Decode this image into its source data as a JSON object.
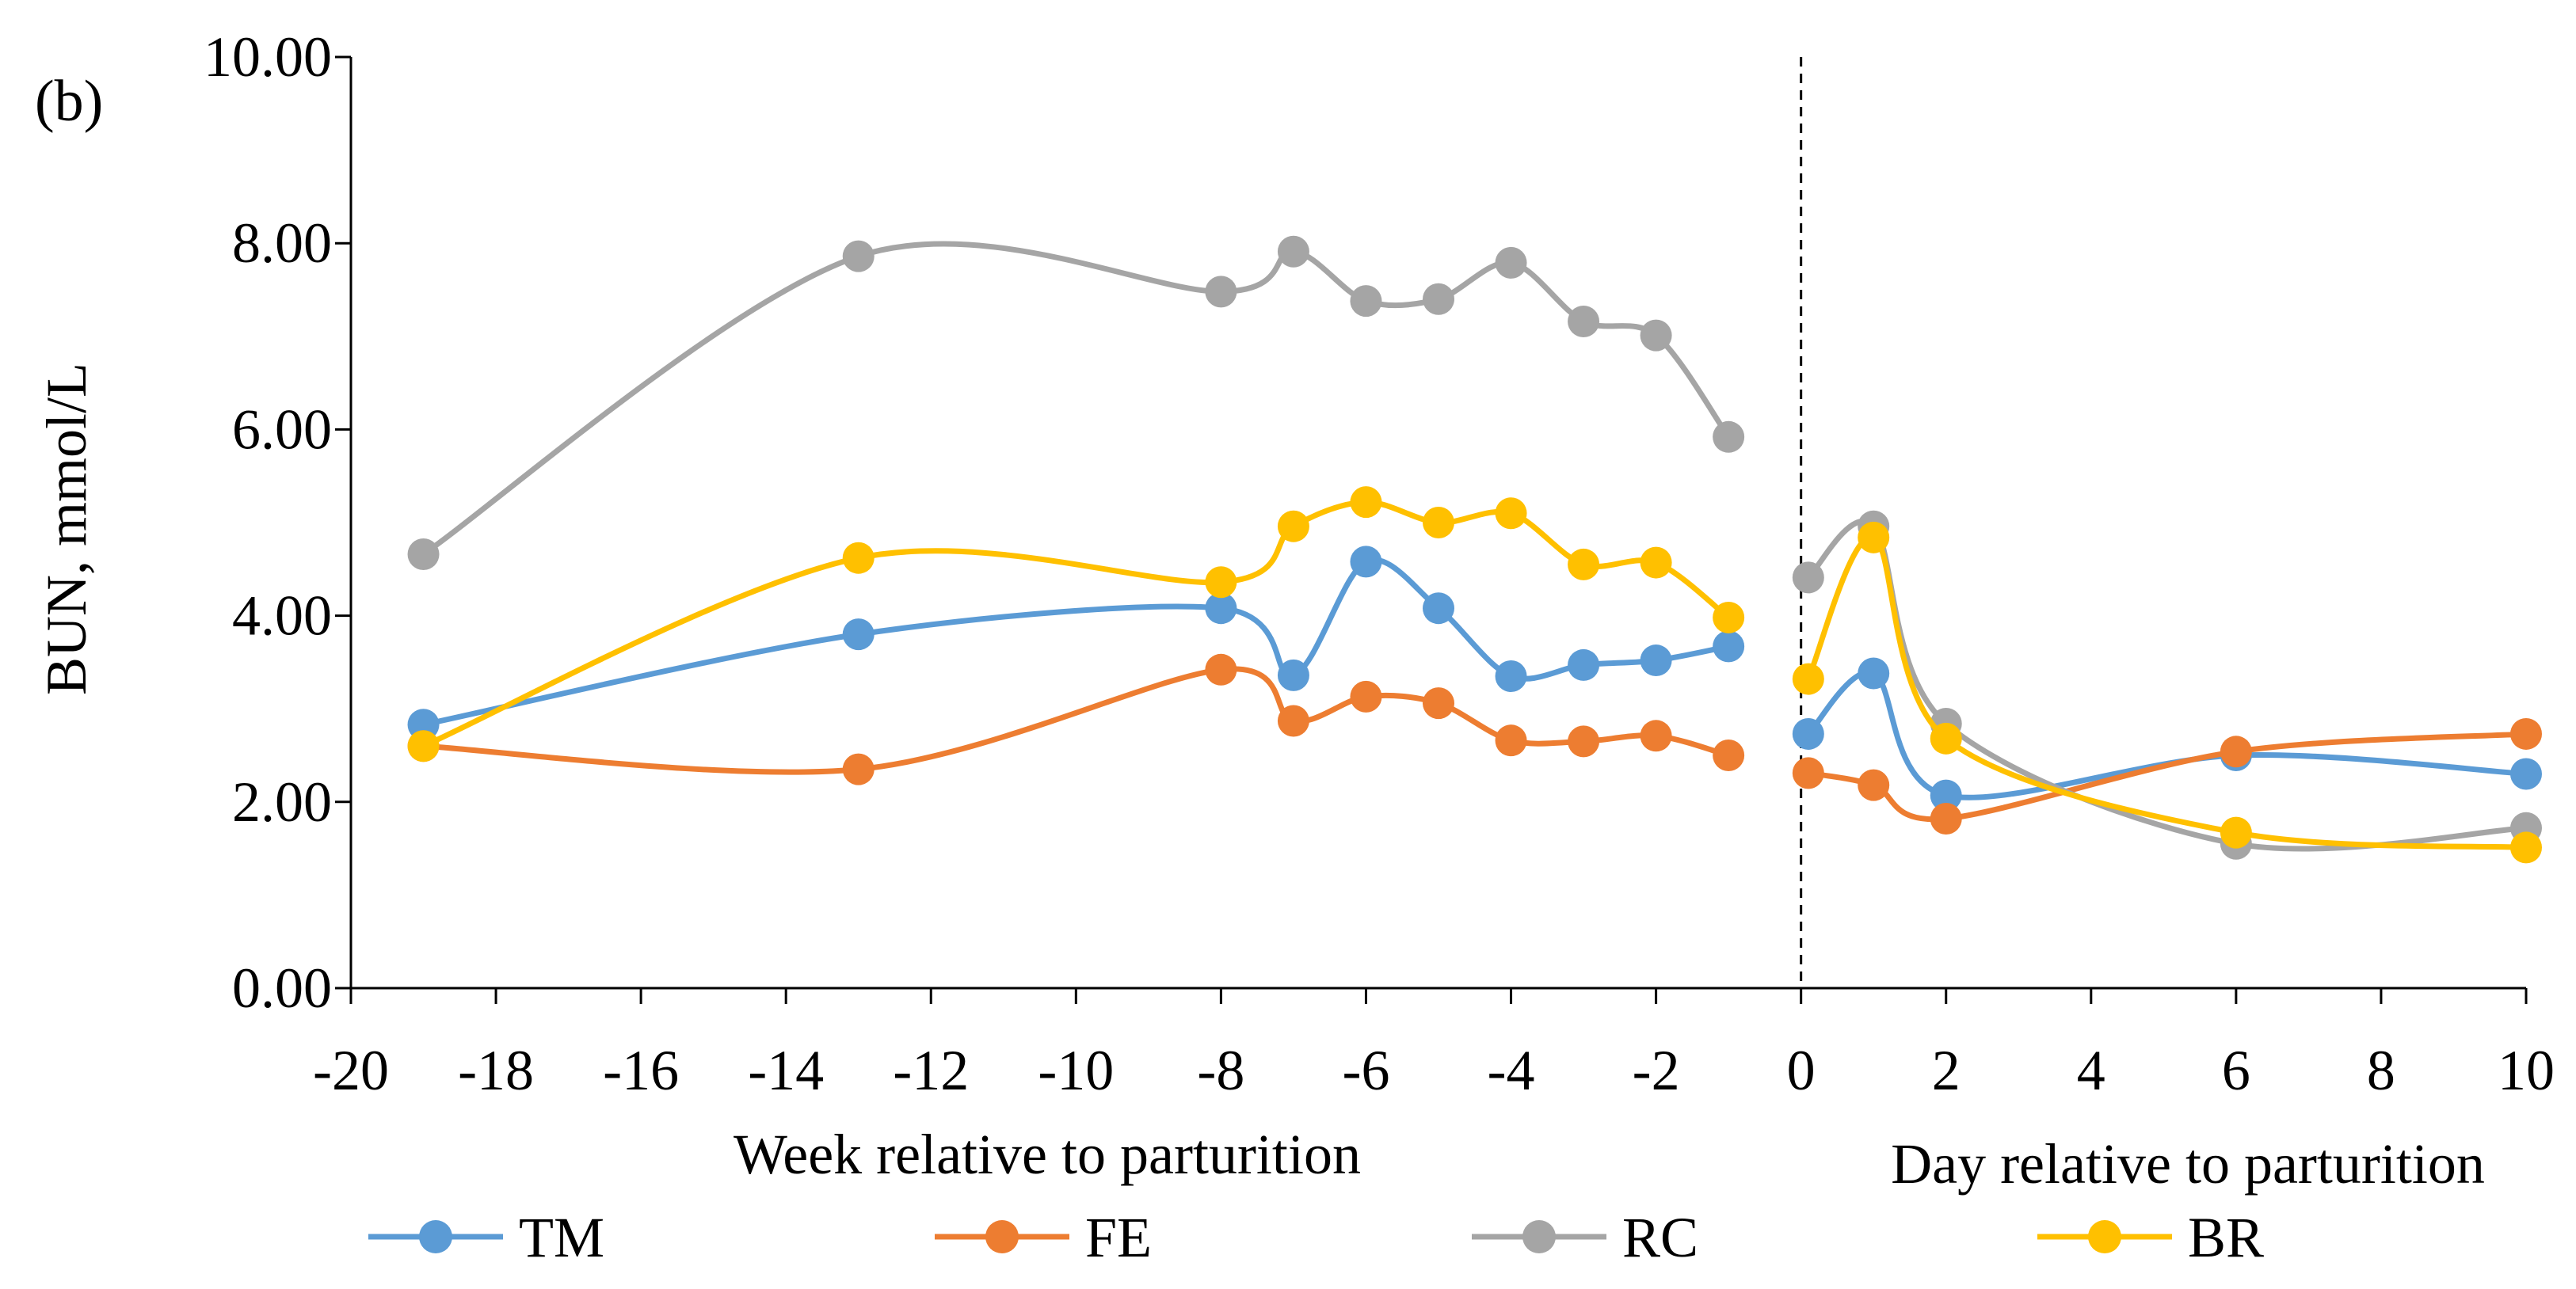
{
  "chart_data": {
    "type": "line",
    "panel_label": "(b)",
    "ylabel": "BUN, mmol/L",
    "ylim": [
      0,
      10
    ],
    "yticks": [
      "0.00",
      "2.00",
      "4.00",
      "6.00",
      "8.00",
      "10.00"
    ],
    "xlabel_weeks": "Week relative to parturition",
    "xlabel_days": "Day relative to parturition",
    "xticks": [
      "-20",
      "-18",
      "-16",
      "-14",
      "-12",
      "-10",
      "-8",
      "-6",
      "-4",
      "-2",
      "0",
      "2",
      "4",
      "6",
      "8",
      "10"
    ],
    "xlim": [
      -20,
      10
    ],
    "divider_x": 0,
    "series": [
      {
        "name": "TM",
        "color": "#5B9BD5",
        "prepartum": [
          [
            -19,
            2.83
          ],
          [
            -13,
            3.8
          ],
          [
            -8,
            4.08
          ],
          [
            -7,
            3.36
          ],
          [
            -6,
            4.58
          ],
          [
            -5,
            4.08
          ],
          [
            -4,
            3.35
          ],
          [
            -3,
            3.47
          ],
          [
            -2,
            3.52
          ],
          [
            -1,
            3.67
          ]
        ],
        "postpartum": [
          [
            0.1,
            2.73
          ],
          [
            1,
            3.38
          ],
          [
            2,
            2.07
          ],
          [
            6,
            2.5
          ],
          [
            10,
            2.3
          ]
        ]
      },
      {
        "name": "FE",
        "color": "#ED7D31",
        "prepartum": [
          [
            -19,
            2.6
          ],
          [
            -13,
            2.35
          ],
          [
            -8,
            3.42
          ],
          [
            -7,
            2.87
          ],
          [
            -6,
            3.13
          ],
          [
            -5,
            3.06
          ],
          [
            -4,
            2.66
          ],
          [
            -3,
            2.65
          ],
          [
            -2,
            2.71
          ],
          [
            -1,
            2.5
          ]
        ],
        "postpartum": [
          [
            0.1,
            2.31
          ],
          [
            1,
            2.18
          ],
          [
            2,
            1.82
          ],
          [
            6,
            2.54
          ],
          [
            10,
            2.73
          ]
        ]
      },
      {
        "name": "RC",
        "color": "#A5A5A5",
        "prepartum": [
          [
            -19,
            4.66
          ],
          [
            -13,
            7.86
          ],
          [
            -8,
            7.48
          ],
          [
            -7,
            7.91
          ],
          [
            -6,
            7.38
          ],
          [
            -5,
            7.4
          ],
          [
            -4,
            7.79
          ],
          [
            -3,
            7.16
          ],
          [
            -2,
            7.01
          ],
          [
            -1,
            5.92
          ]
        ],
        "postpartum": [
          [
            0.1,
            4.41
          ],
          [
            1,
            4.96
          ],
          [
            2,
            2.84
          ],
          [
            6,
            1.55
          ],
          [
            10,
            1.72
          ]
        ]
      },
      {
        "name": "BR",
        "color": "#FFC000",
        "prepartum": [
          [
            -19,
            2.6
          ],
          [
            -13,
            4.62
          ],
          [
            -8,
            4.36
          ],
          [
            -7,
            4.96
          ],
          [
            -6,
            5.22
          ],
          [
            -5,
            5.0
          ],
          [
            -4,
            5.1
          ],
          [
            -3,
            4.55
          ],
          [
            -2,
            4.57
          ],
          [
            -1,
            3.98
          ]
        ],
        "postpartum": [
          [
            0.1,
            3.32
          ],
          [
            1,
            4.84
          ],
          [
            2,
            2.68
          ],
          [
            6,
            1.67
          ],
          [
            10,
            1.51
          ]
        ]
      }
    ],
    "legend_position": "bottom"
  }
}
